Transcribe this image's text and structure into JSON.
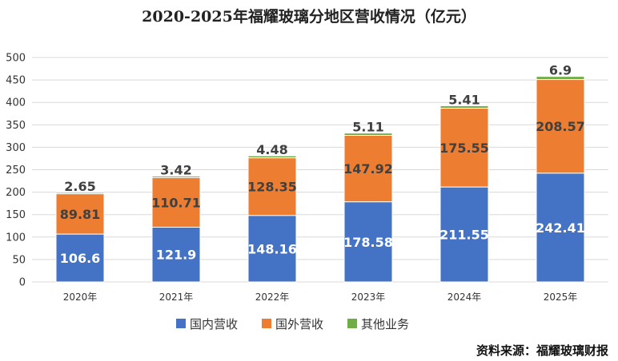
{
  "chart_data": {
    "type": "bar",
    "stacked": true,
    "title": "2020-2025年福耀玻璃分地区营收情况（亿元）",
    "categories": [
      "2020年",
      "2021年",
      "2022年",
      "2023年",
      "2024年",
      "2025年"
    ],
    "series": [
      {
        "name": "国内营收",
        "values": [
          106.6,
          121.9,
          148.16,
          178.58,
          211.55,
          242.41
        ],
        "labels": [
          "106.6",
          "121.9",
          "148.16",
          "178.58",
          "211.55",
          "242.41"
        ],
        "color": "#4472C4",
        "label_color": "#ffffff"
      },
      {
        "name": "国外营收",
        "values": [
          89.81,
          110.71,
          128.35,
          147.92,
          175.55,
          208.57
        ],
        "labels": [
          "89.81",
          "110.71",
          "128.35",
          "147.92",
          "175.55",
          "208.57"
        ],
        "color": "#ED7D31",
        "label_color": "#404040"
      },
      {
        "name": "其他业务",
        "values": [
          2.65,
          3.42,
          4.48,
          5.11,
          5.41,
          6.9
        ],
        "labels": [
          "2.65",
          "3.42",
          "4.48",
          "5.11",
          "5.41",
          "6.9"
        ],
        "color": "#70AD47",
        "label_color": "#404040"
      }
    ],
    "ylim": [
      0,
      500
    ],
    "yticks": [
      "0",
      "50",
      "100",
      "150",
      "200",
      "250",
      "300",
      "350",
      "400",
      "450",
      "500"
    ],
    "grid": true,
    "legend_position": "bottom",
    "source": "资料来源：福耀玻璃财报"
  }
}
